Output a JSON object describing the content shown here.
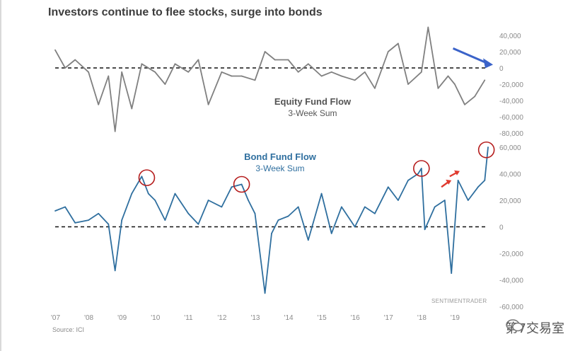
{
  "title": "Investors continue to flee stocks, surge into bonds",
  "source": "Source: ICI",
  "credit": "SENTIMENTRADER",
  "watermark": "第7交易室",
  "colors": {
    "equity": "#808080",
    "bond": "#2f6f9f",
    "circle": "#b51c1c",
    "arrow_blue": "#3b63c9",
    "arrow_red": "#e03a2f"
  },
  "chart_data": [
    {
      "type": "line",
      "title": "Equity Fund Flow",
      "subtitle": "3-Week Sum",
      "ylim": [
        -80000,
        40000
      ],
      "yticks": [
        "40,000",
        "20,000",
        "0",
        "-20,000",
        "-40,000",
        "-60,000",
        "-80,000"
      ],
      "ytick_values": [
        40000,
        20000,
        0,
        -20000,
        -40000,
        -60000,
        -80000
      ],
      "zero_line": true,
      "series": [
        {
          "x": [
            2007.0,
            2007.3,
            2007.6,
            2008.0,
            2008.3,
            2008.6,
            2008.8,
            2009.0,
            2009.3,
            2009.6,
            2010.0,
            2010.3,
            2010.6,
            2011.0,
            2011.3,
            2011.6,
            2012.0,
            2012.3,
            2012.6,
            2013.0,
            2013.3,
            2013.6,
            2014.0,
            2014.3,
            2014.6,
            2015.0,
            2015.3,
            2015.6,
            2016.0,
            2016.3,
            2016.6,
            2017.0,
            2017.3,
            2017.6,
            2018.0,
            2018.2,
            2018.5,
            2018.8,
            2019.0,
            2019.3,
            2019.6,
            2019.9
          ],
          "values": [
            22000,
            0,
            10000,
            -5000,
            -45000,
            -10000,
            -78000,
            -5000,
            -50000,
            5000,
            -5000,
            -20000,
            5000,
            -5000,
            10000,
            -45000,
            -5000,
            -10000,
            -10000,
            -15000,
            20000,
            10000,
            10000,
            -5000,
            5000,
            -10000,
            -5000,
            -10000,
            -15000,
            -5000,
            -25000,
            20000,
            30000,
            -20000,
            -5000,
            50000,
            -25000,
            -10000,
            -20000,
            -45000,
            -35000,
            -15000
          ]
        }
      ]
    },
    {
      "type": "line",
      "title": "Bond Fund Flow",
      "subtitle": "3-Week Sum",
      "ylim": [
        -60000,
        60000
      ],
      "yticks": [
        "60,000",
        "40,000",
        "20,000",
        "0",
        "-20,000",
        "-40,000",
        "-60,000"
      ],
      "ytick_values": [
        60000,
        40000,
        20000,
        0,
        -20000,
        -40000,
        -60000
      ],
      "xticks": [
        "'07",
        "'08",
        "'09",
        "'10",
        "'11",
        "'12",
        "'13",
        "'14",
        "'15",
        "'16",
        "'17",
        "'18",
        "'19"
      ],
      "xtick_values": [
        2007,
        2008,
        2009,
        2010,
        2011,
        2012,
        2013,
        2014,
        2015,
        2016,
        2017,
        2018,
        2019
      ],
      "zero_line": true,
      "series": [
        {
          "x": [
            2007.0,
            2007.3,
            2007.6,
            2008.0,
            2008.3,
            2008.6,
            2008.8,
            2009.0,
            2009.3,
            2009.6,
            2009.8,
            2010.0,
            2010.3,
            2010.6,
            2011.0,
            2011.3,
            2011.6,
            2012.0,
            2012.3,
            2012.6,
            2012.8,
            2013.0,
            2013.3,
            2013.5,
            2013.7,
            2014.0,
            2014.3,
            2014.6,
            2015.0,
            2015.3,
            2015.6,
            2016.0,
            2016.3,
            2016.6,
            2017.0,
            2017.3,
            2017.6,
            2017.9,
            2018.0,
            2018.1,
            2018.4,
            2018.7,
            2018.9,
            2019.1,
            2019.4,
            2019.7,
            2019.9,
            2020.0
          ],
          "values": [
            12000,
            15000,
            3000,
            5000,
            10000,
            2000,
            -33000,
            5000,
            25000,
            38000,
            25000,
            20000,
            5000,
            25000,
            10000,
            2000,
            20000,
            15000,
            30000,
            32000,
            20000,
            10000,
            -50000,
            -5000,
            5000,
            8000,
            15000,
            -10000,
            25000,
            -5000,
            15000,
            0,
            15000,
            10000,
            30000,
            20000,
            35000,
            40000,
            44000,
            -2000,
            15000,
            20000,
            -35000,
            35000,
            20000,
            30000,
            35000,
            60000
          ]
        }
      ]
    }
  ]
}
